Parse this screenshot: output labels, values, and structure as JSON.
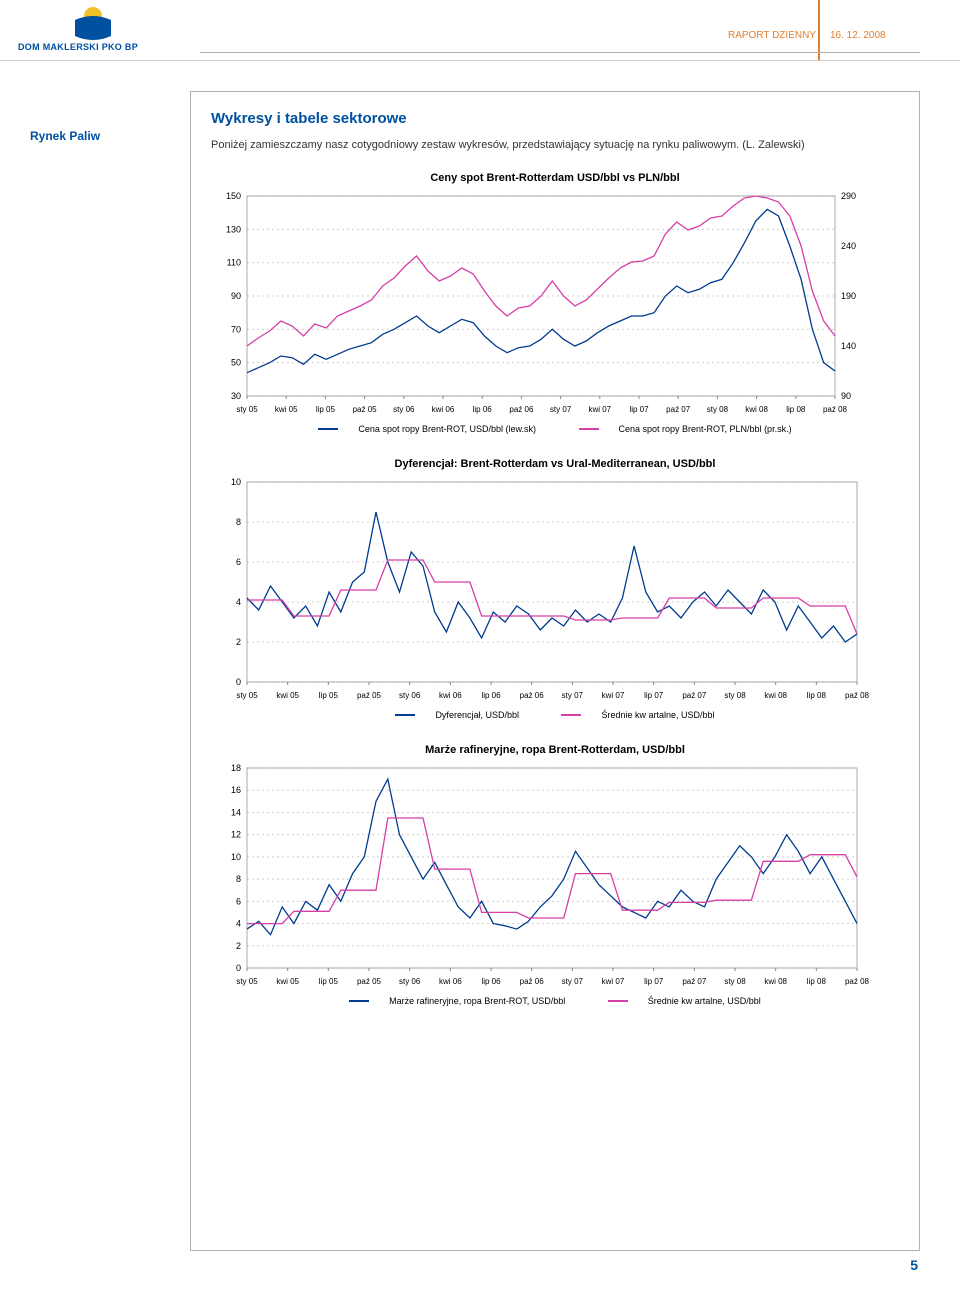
{
  "header": {
    "logo_text": "DOM MAKLERSKI PKO BP",
    "report_label": "RAPORT DZIENNY",
    "report_date": "16. 12. 2008",
    "logo_colors": {
      "top": "#f0c028",
      "bottom": "#0050a0"
    }
  },
  "side_label": "Rynek Paliw",
  "section_title": "Wykresy i tabele sektorowe",
  "intro": "Poniżej zamieszczamy nasz cotygodniowy zestaw wykresów, przedstawiający sytuację na rynku paliwowym. (L. Zalewski)",
  "page_number": "5",
  "charts": {
    "chart1": {
      "title": "Ceny spot Brent-Rotterdam USD/bbl vs PLN/bbl",
      "type": "line-dual-axis",
      "left_ticks": [
        30,
        50,
        70,
        90,
        110,
        130,
        150
      ],
      "right_ticks": [
        90,
        140,
        190,
        240,
        290
      ],
      "x_labels": [
        "sty 05",
        "kwi 05",
        "lip 05",
        "paź 05",
        "sty 06",
        "kwi 06",
        "lip 06",
        "paź 06",
        "sty 07",
        "kwi 07",
        "lip 07",
        "paź 07",
        "sty 08",
        "kwi 08",
        "lip 08",
        "paź 08"
      ],
      "series_a": {
        "label": "Cena spot ropy Brent-ROT, USD/bbl (lew.sk)",
        "color": "#003b8e",
        "values": [
          44,
          47,
          50,
          54,
          53,
          49,
          55,
          52,
          55,
          58,
          60,
          62,
          67,
          70,
          74,
          78,
          72,
          68,
          72,
          76,
          74,
          66,
          60,
          56,
          59,
          60,
          64,
          70,
          64,
          60,
          63,
          68,
          72,
          75,
          78,
          78,
          80,
          90,
          96,
          92,
          94,
          98,
          100,
          110,
          122,
          135,
          142,
          138,
          120,
          100,
          70,
          50,
          45
        ]
      },
      "series_b": {
        "label": "Cena spot ropy Brent-ROT, PLN/bbl (pr.sk.)",
        "color": "#d63fa8",
        "values": [
          140,
          148,
          155,
          165,
          160,
          150,
          162,
          158,
          170,
          175,
          180,
          186,
          200,
          208,
          220,
          230,
          215,
          205,
          210,
          218,
          212,
          195,
          180,
          170,
          178,
          180,
          190,
          205,
          190,
          180,
          186,
          197,
          208,
          218,
          224,
          225,
          230,
          252,
          264,
          256,
          260,
          268,
          270,
          280,
          288,
          290,
          288,
          284,
          270,
          240,
          195,
          165,
          150
        ]
      },
      "grid_color": "#d0d0d0",
      "background": "#ffffff",
      "font_size_labels": 9
    },
    "chart2": {
      "title": "Dyferencjał: Brent-Rotterdam vs Ural-Mediterranean, USD/bbl",
      "type": "line",
      "y_ticks": [
        0,
        2,
        4,
        6,
        8,
        10
      ],
      "x_labels": [
        "sty 05",
        "kwi 05",
        "lip 05",
        "paź 05",
        "sty 06",
        "kwi 06",
        "lip 06",
        "paź 06",
        "sty 07",
        "kwi 07",
        "lip 07",
        "paź 07",
        "sty 08",
        "kwi 08",
        "lip 08",
        "paź 08"
      ],
      "series_a": {
        "label": "Dyferencjał, USD/bbl",
        "color": "#003b8e",
        "values": [
          4.2,
          3.6,
          4.8,
          4.0,
          3.2,
          3.8,
          2.8,
          4.5,
          3.5,
          5.0,
          5.5,
          8.5,
          6.0,
          4.5,
          6.5,
          5.8,
          3.5,
          2.5,
          4.0,
          3.2,
          2.2,
          3.5,
          3.0,
          3.8,
          3.4,
          2.6,
          3.2,
          2.8,
          3.6,
          3.0,
          3.4,
          3.0,
          4.2,
          6.8,
          4.5,
          3.5,
          3.8,
          3.2,
          4.0,
          4.5,
          3.8,
          4.6,
          4.0,
          3.4,
          4.6,
          4.0,
          2.6,
          3.8,
          3.0,
          2.2,
          2.8,
          2.0,
          2.4
        ]
      },
      "series_b": {
        "label": "Średnie kw artalne, USD/bbl",
        "color": "#d63fa8",
        "values": [
          4.1,
          4.1,
          4.1,
          4.1,
          3.3,
          3.3,
          3.3,
          3.3,
          4.6,
          4.6,
          4.6,
          4.6,
          6.1,
          6.1,
          6.1,
          6.1,
          5.0,
          5.0,
          5.0,
          5.0,
          3.3,
          3.3,
          3.3,
          3.3,
          3.3,
          3.3,
          3.3,
          3.3,
          3.1,
          3.1,
          3.1,
          3.1,
          3.2,
          3.2,
          3.2,
          3.2,
          4.2,
          4.2,
          4.2,
          4.2,
          3.7,
          3.7,
          3.7,
          3.7,
          4.2,
          4.2,
          4.2,
          4.2,
          3.8,
          3.8,
          3.8,
          3.8,
          2.4
        ]
      },
      "grid_color": "#d0d0d0",
      "background": "#ffffff",
      "font_size_labels": 9
    },
    "chart3": {
      "title": "Marże rafineryjne, ropa Brent-Rotterdam, USD/bbl",
      "type": "line",
      "y_ticks": [
        0,
        2,
        4,
        6,
        8,
        10,
        12,
        14,
        16,
        18
      ],
      "x_labels": [
        "sty 05",
        "kwi 05",
        "lip 05",
        "paź 05",
        "sty 06",
        "kwi 06",
        "lip 06",
        "paź 06",
        "sty 07",
        "kwi 07",
        "lip 07",
        "paź 07",
        "sty 08",
        "kwi 08",
        "lip 08",
        "paź 08"
      ],
      "series_a": {
        "label": "Marże rafineryjne, ropa Brent-ROT, USD/bbl",
        "color": "#003b8e",
        "values": [
          3.5,
          4.2,
          3.0,
          5.5,
          4.0,
          6.0,
          5.2,
          7.5,
          6.0,
          8.5,
          10,
          15,
          17,
          12,
          10,
          8,
          9.5,
          7.5,
          5.5,
          4.5,
          6.0,
          4.0,
          3.8,
          3.5,
          4.2,
          5.5,
          6.5,
          8.0,
          10.5,
          9.0,
          7.5,
          6.5,
          5.5,
          5.0,
          4.5,
          6.0,
          5.5,
          7.0,
          6.0,
          5.5,
          8.0,
          9.5,
          11,
          10,
          8.5,
          10,
          12,
          10.5,
          8.5,
          10,
          8.0,
          6.0,
          4.0
        ]
      },
      "series_b": {
        "label": "Średnie kw artalne, USD/bbl",
        "color": "#d63fa8",
        "values": [
          4.0,
          4.0,
          4.0,
          4.0,
          5.1,
          5.1,
          5.1,
          5.1,
          7.0,
          7.0,
          7.0,
          7.0,
          13.5,
          13.5,
          13.5,
          13.5,
          8.9,
          8.9,
          8.9,
          8.9,
          5.0,
          5.0,
          5.0,
          5.0,
          4.5,
          4.5,
          4.5,
          4.5,
          8.5,
          8.5,
          8.5,
          8.5,
          5.2,
          5.2,
          5.2,
          5.2,
          5.9,
          5.9,
          5.9,
          5.9,
          6.1,
          6.1,
          6.1,
          6.1,
          9.6,
          9.6,
          9.6,
          9.6,
          10.2,
          10.2,
          10.2,
          10.2,
          8.2
        ]
      },
      "grid_color": "#d0d0d0",
      "background": "#ffffff",
      "font_size_labels": 9
    }
  }
}
